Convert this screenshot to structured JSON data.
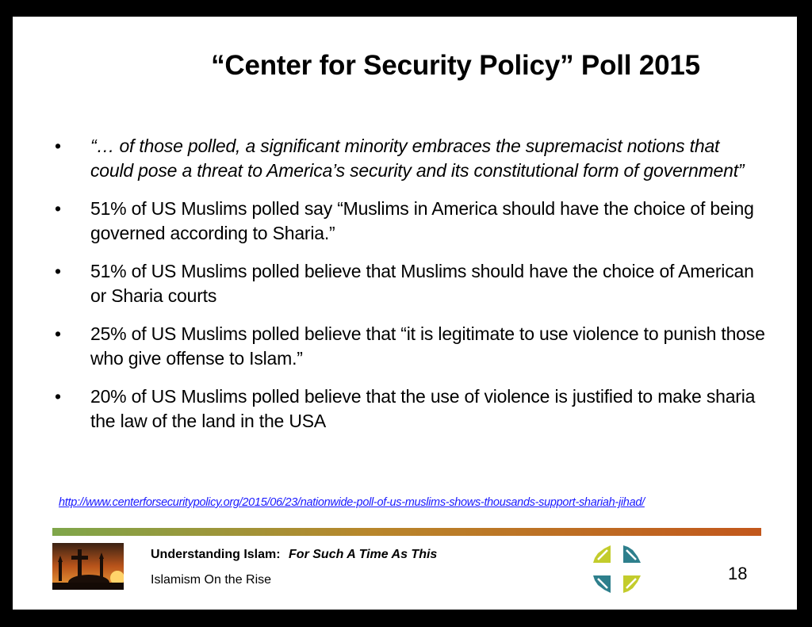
{
  "slide": {
    "title": "“Center for Security Policy” Poll 2015",
    "bullets": [
      {
        "marker": "•",
        "text": "“… of those polled, a significant minority embraces the supremacist notions that could pose a threat to America’s security and its constitutional form of government”",
        "style": "italic"
      },
      {
        "marker": "•",
        "text": "51% of US Muslims polled say “Muslims in America should have the choice of being governed according to Sharia.”",
        "style": "normal"
      },
      {
        "marker": "•",
        "text": "51% of US Muslims polled believe that Muslims should have the choice of American or Sharia courts",
        "style": "normal"
      },
      {
        "marker": "•",
        "text": "25% of US Muslims polled believe that “it is legitimate to use violence to punish those who give offense to Islam.”",
        "style": "normal"
      },
      {
        "marker": "•",
        "text": "20% of US Muslims polled believe that the use of violence is justified to make sharia the law of the land in the USA",
        "style": "normal"
      }
    ],
    "source_link": "http://www.centerforsecuritypolicy.org/2015/06/23/nationwide-poll-of-us-muslims-shows-thousands-support-shariah-jihad/"
  },
  "footer": {
    "title": "Understanding Islam:",
    "subtitle": "For Such A Time As This",
    "section": "Islamism On the Rise",
    "page_number": "18",
    "logo_icon": "cross-logo-icon",
    "thumbnail_icon": "sunset-cross-minaret-image"
  },
  "colors": {
    "rule_start": "#7fa64a",
    "rule_end": "#c2571c",
    "link": "#1a1aff",
    "logo_teal": "#2e7f8c",
    "logo_lime": "#c3cc2c"
  }
}
